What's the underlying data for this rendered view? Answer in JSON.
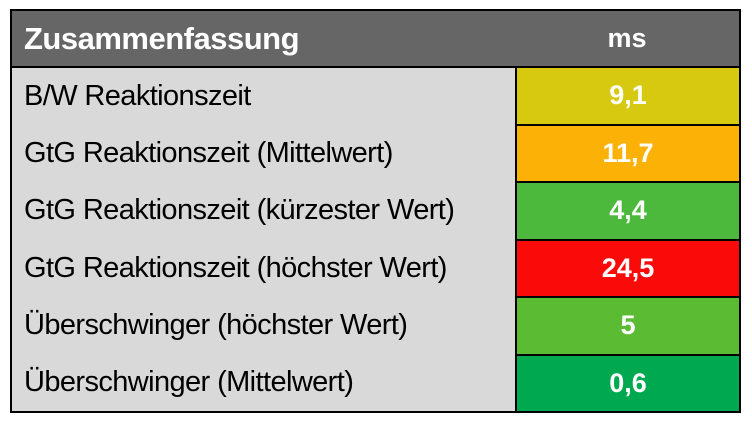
{
  "table": {
    "title": "Zusammenfassung",
    "unit_header": "ms",
    "rows": [
      {
        "label": "B/W Reaktionszeit",
        "value": "9,1",
        "color": "#d7c90f"
      },
      {
        "label": "GtG Reaktionszeit (Mittelwert)",
        "value": "11,7",
        "color": "#fbb105"
      },
      {
        "label": "GtG Reaktionszeit (kürzester Wert)",
        "value": "4,4",
        "color": "#4cb83c"
      },
      {
        "label": "GtG Reaktionszeit (höchster Wert)",
        "value": "24,5",
        "color": "#fb0a0a"
      },
      {
        "label": "Überschwinger (höchster Wert)",
        "value": "5",
        "color": "#5bbc33"
      },
      {
        "label": "Überschwinger (Mittelwert)",
        "value": "0,6",
        "color": "#00a850"
      }
    ],
    "colors": {
      "header_bg": "#666666",
      "header_text": "#ffffff",
      "label_bg": "#d9d9d9",
      "label_text": "#000000",
      "value_text": "#ffffff",
      "border": "#000000"
    }
  },
  "chart_data": {
    "type": "table",
    "title": "Zusammenfassung",
    "columns": [
      "Zusammenfassung",
      "ms"
    ],
    "rows": [
      [
        "B/W Reaktionszeit",
        9.1
      ],
      [
        "GtG Reaktionszeit (Mittelwert)",
        11.7
      ],
      [
        "GtG Reaktionszeit (kürzester Wert)",
        4.4
      ],
      [
        "GtG Reaktionszeit (höchster Wert)",
        24.5
      ],
      [
        "Überschwinger (höchster Wert)",
        5
      ],
      [
        "Überschwinger (Mittelwert)",
        0.6
      ]
    ],
    "value_cell_colors": [
      "#d7c90f",
      "#fbb105",
      "#4cb83c",
      "#fb0a0a",
      "#5bbc33",
      "#00a850"
    ],
    "color_semantics": "green = good, yellow/orange = mediocre, red = poor"
  }
}
